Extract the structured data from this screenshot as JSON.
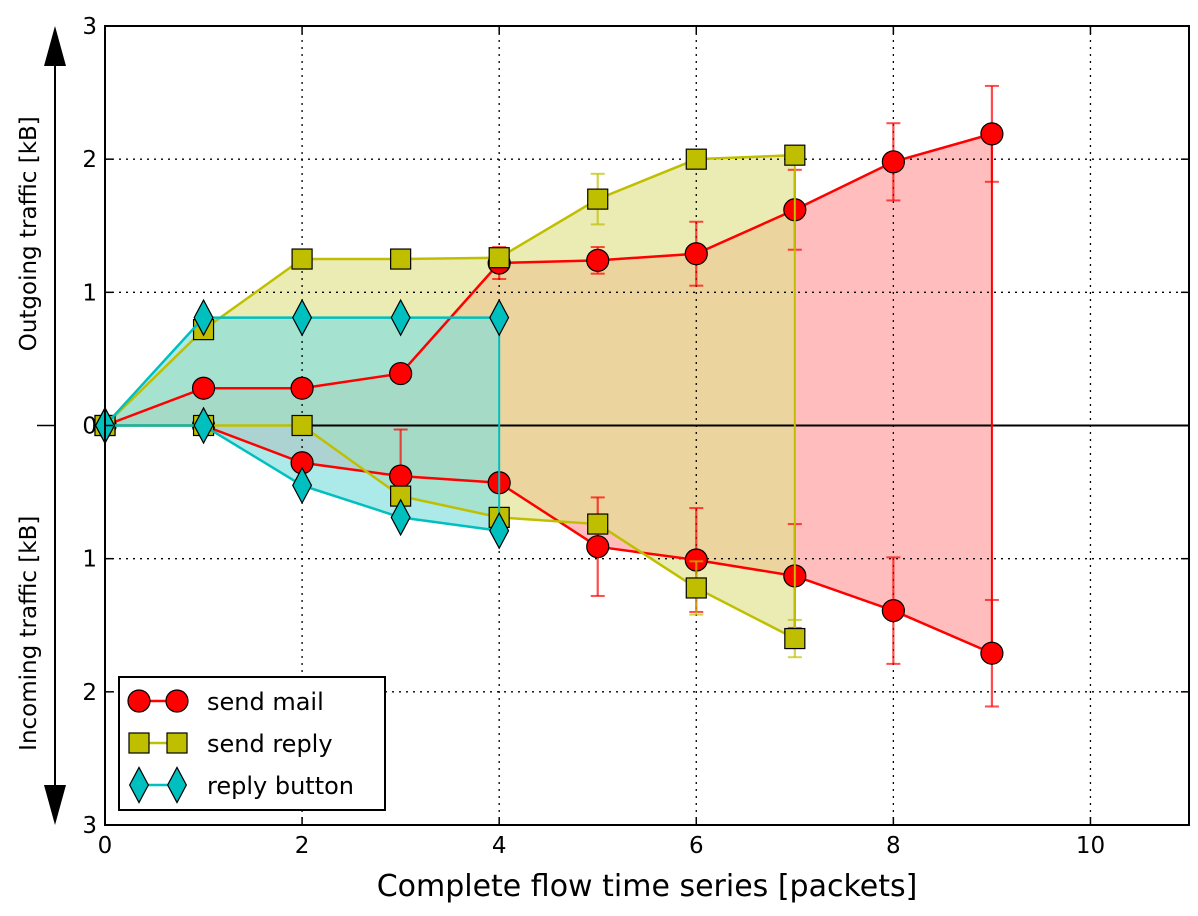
{
  "chart_data": {
    "type": "line",
    "xlabel": "Complete flow time series [packets]",
    "ylabel_top": "Outgoing traffic [kB]",
    "ylabel_bottom": "Incoming traffic [kB]",
    "xlim": [
      0,
      11
    ],
    "ylim": [
      -3,
      3
    ],
    "xticks": [
      "0",
      "2",
      "4",
      "6",
      "8",
      "10"
    ],
    "yticks": [
      "3",
      "2",
      "1",
      "0",
      "1",
      "2",
      "3"
    ],
    "grid": true,
    "legend_position": "lower-left",
    "series": [
      {
        "name": "send mail",
        "color": "#ff0000",
        "fill": "#ff9999",
        "marker": "circle",
        "x": [
          0,
          1,
          2,
          3,
          4,
          5,
          6,
          7,
          8,
          9
        ],
        "outgoing": [
          0,
          0.28,
          0.28,
          0.39,
          1.22,
          1.24,
          1.29,
          1.62,
          1.98,
          2.19
        ],
        "outgoing_err": [
          0,
          0,
          0,
          0,
          0.12,
          0.1,
          0.24,
          0.3,
          0.29,
          0.36
        ],
        "incoming": [
          0,
          0,
          0.28,
          0.38,
          0.43,
          0.91,
          1.01,
          1.13,
          1.39,
          1.71
        ],
        "incoming_err": [
          0,
          0,
          0,
          0.35,
          0,
          0.37,
          0.39,
          0.39,
          0.4,
          0.4
        ]
      },
      {
        "name": "send reply",
        "color": "#bfbf00",
        "fill": "#e0e08c",
        "marker": "square",
        "x": [
          0,
          1,
          2,
          3,
          4,
          5,
          6,
          7
        ],
        "outgoing": [
          0,
          0.72,
          1.25,
          1.25,
          1.26,
          1.7,
          2.0,
          2.03
        ],
        "outgoing_err": [
          0,
          0,
          0,
          0,
          0,
          0.19,
          0,
          0
        ],
        "incoming": [
          0,
          0,
          0,
          0.53,
          0.69,
          0.74,
          1.22,
          1.6
        ],
        "incoming_err": [
          0,
          0,
          0,
          0,
          0,
          0,
          0.2,
          0.14
        ]
      },
      {
        "name": "reply button",
        "color": "#00bfbf",
        "fill": "#80dddd",
        "marker": "diamond",
        "x": [
          0,
          1,
          2,
          3,
          4
        ],
        "outgoing": [
          0,
          0.81,
          0.81,
          0.81,
          0.81
        ],
        "outgoing_err": [
          0,
          0,
          0,
          0,
          0
        ],
        "incoming": [
          0,
          0,
          0.45,
          0.69,
          0.79
        ],
        "incoming_err": [
          0,
          0,
          0,
          0,
          0
        ]
      }
    ]
  }
}
